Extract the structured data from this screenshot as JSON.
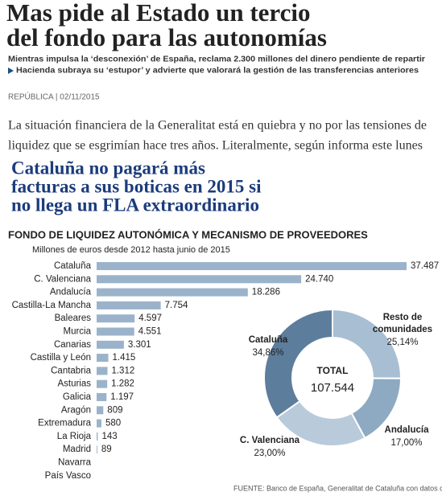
{
  "header": {
    "title_lines": [
      "Mas pide al Estado un tercio",
      "del fondo para las autonomías"
    ],
    "subtitle_lines": [
      "Mientras impulsa la ‘desconexión’ de España, reclama 2.300 millones del dinero pendiente de repartir",
      "Hacienda subraya su ‘estupor’ y advierte que valorará la gestión de las transferencias anteriores"
    ],
    "section": "REPÚBLICA | 02/11/2015"
  },
  "paragraph": {
    "lines": [
      "La situación financiera de la Generalitat está en quiebra y no por las tensiones de",
      "liquidez que se esgrimían hace tres años. Literalmente, según informa este lunes"
    ]
  },
  "headline2": {
    "lines": [
      "Cataluña no pagará más",
      "facturas a sus boticas en 2015 si",
      "no llega un FLA extraordinario"
    ]
  },
  "chart_data": [
    {
      "type": "bar",
      "title": "FONDO DE LIQUIDEZ AUTONÓMICA Y MECANISMO DE PROVEEDORES",
      "subtitle": "Millones de euros desde 2012 hasta junio de 2015",
      "categories": [
        "Cataluña",
        "C. Valenciana",
        "Andalucía",
        "Castilla-La Mancha",
        "Baleares",
        "Murcia",
        "Canarias",
        "Castilla y León",
        "Cantabria",
        "Asturias",
        "Galicia",
        "Aragón",
        "Extremadura",
        "La Rioja",
        "Madrid",
        "Navarra",
        "País Vasco"
      ],
      "values": [
        37487,
        24740,
        18286,
        7754,
        4597,
        4551,
        3301,
        1415,
        1312,
        1282,
        1197,
        809,
        580,
        143,
        89,
        null,
        null
      ],
      "value_labels": [
        "37.487",
        "24.740",
        "18.286",
        "7.754",
        "4.597",
        "4.551",
        "3.301",
        "1.415",
        "1.312",
        "1.282",
        "1.197",
        "809",
        "580",
        "143",
        "89",
        null,
        null
      ],
      "color": "#9bb3ca"
    },
    {
      "type": "pie",
      "donut": true,
      "center_label": "TOTAL",
      "center_value": "107.544",
      "categories": [
        "Resto de comunidades",
        "Andalucía",
        "C. Valenciana",
        "Cataluña"
      ],
      "values": [
        25.14,
        17.0,
        23.0,
        34.86
      ],
      "value_labels": [
        "25,14%",
        "17,00%",
        "23,00%",
        "34,86%"
      ],
      "colors": [
        "#a8bed2",
        "#8ea9c2",
        "#b9cadb",
        "#5d7d9c"
      ],
      "source": "FUENTE:  Banco de España, Generalitat de Cataluña con datos de IGAE"
    }
  ]
}
